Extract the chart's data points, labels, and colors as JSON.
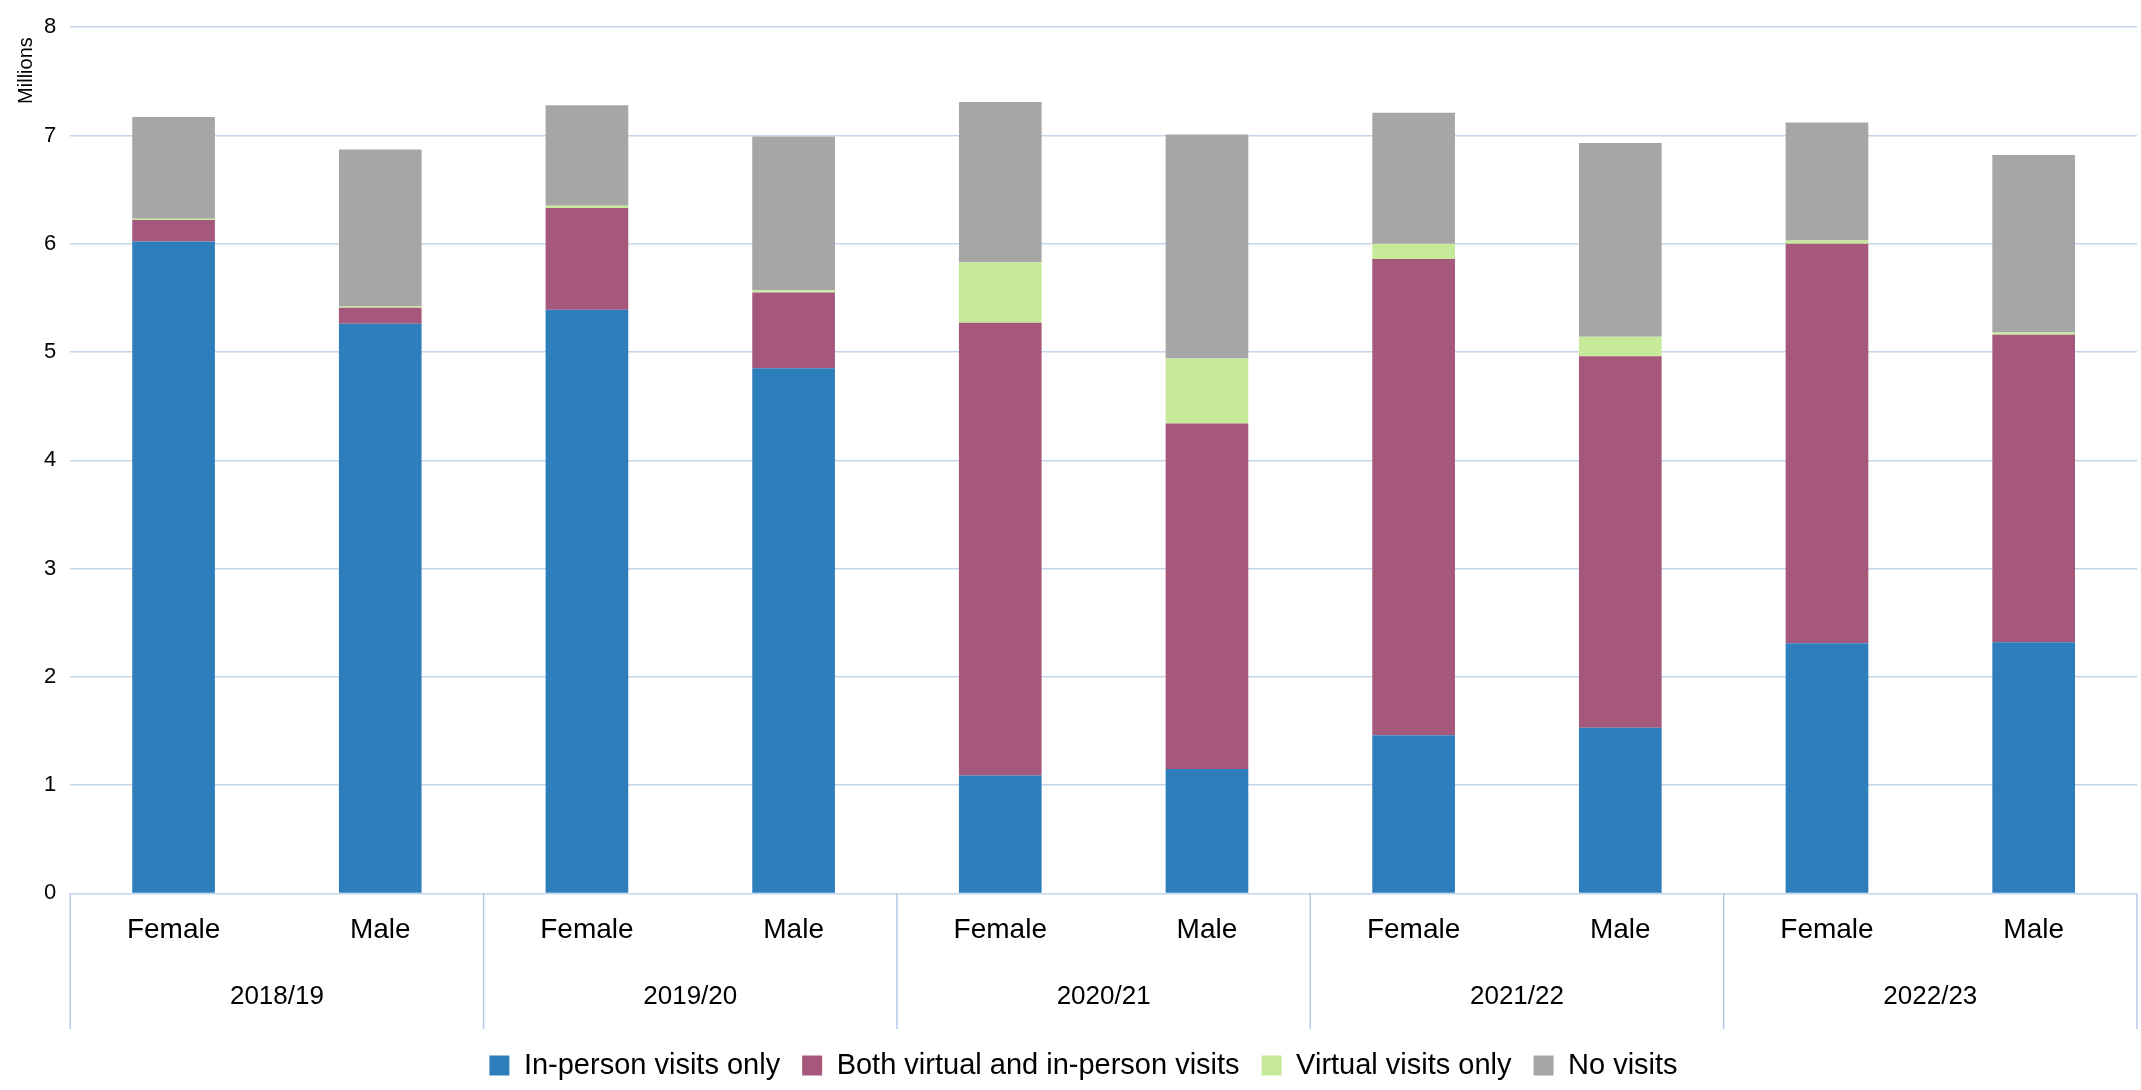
{
  "chart_data": {
    "type": "bar",
    "stacked": true,
    "ylabel": "Millions",
    "categories": [
      "Female",
      "Male",
      "Female",
      "Male",
      "Female",
      "Male",
      "Female",
      "Male",
      "Female",
      "Male"
    ],
    "annotations": [
      "2018/19",
      "2019/20",
      "2020/21",
      "2021/22",
      "2022/23"
    ],
    "series": [
      {
        "name": "In-person visits only",
        "color": "#2e7ebc",
        "values": [
          6.02,
          5.26,
          5.39,
          4.85,
          1.09,
          1.15,
          1.46,
          1.53,
          2.31,
          2.32
        ]
      },
      {
        "name": "Both virtual and in-person visits",
        "color": "#a5587c",
        "values": [
          0.2,
          0.15,
          0.94,
          0.7,
          4.18,
          3.19,
          4.4,
          3.43,
          3.69,
          2.84
        ]
      },
      {
        "name": "Virtual visits only",
        "color": "#c7e99a",
        "values": [
          0.01,
          0.01,
          0.02,
          0.02,
          0.56,
          0.6,
          0.14,
          0.18,
          0.03,
          0.02
        ]
      },
      {
        "name": "No visits",
        "color": "#a6a6a6",
        "values": [
          0.94,
          1.45,
          0.93,
          1.42,
          1.48,
          2.07,
          1.21,
          1.79,
          1.09,
          1.64
        ]
      }
    ],
    "ylim": [
      0,
      8
    ],
    "yticks": [
      0,
      1,
      2,
      3,
      4,
      5,
      6,
      7,
      8
    ],
    "grid": "y",
    "legend": "bottom"
  }
}
